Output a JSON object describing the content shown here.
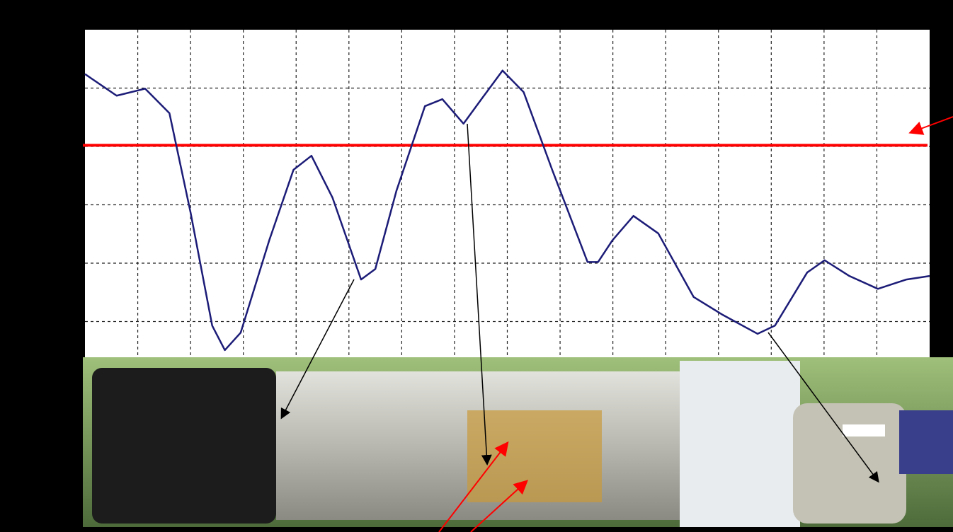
{
  "chart_data": {
    "type": "line",
    "x": [
      0,
      0.6,
      1.14,
      1.6,
      2.0,
      2.41,
      2.65,
      2.95,
      3.49,
      3.95,
      4.29,
      4.69,
      5.23,
      5.5,
      5.9,
      6.44,
      6.77,
      7.17,
      7.51,
      7.91,
      8.31,
      8.85,
      9.52,
      9.72,
      9.99,
      10.39,
      10.86,
      11.53,
      12.07,
      12.74,
      13.07,
      13.68,
      14.01,
      14.48,
      15.02,
      15.56,
      16
    ],
    "series": [
      {
        "color": "#1c1c78",
        "values": [
          5.24,
          4.87,
          4.99,
          4.57,
          2.87,
          0.93,
          0.51,
          0.81,
          2.39,
          3.6,
          3.84,
          3.12,
          1.72,
          1.9,
          3.24,
          4.69,
          4.81,
          4.39,
          4.81,
          5.3,
          4.93,
          3.6,
          2.02,
          2.02,
          2.39,
          2.81,
          2.51,
          1.42,
          1.12,
          0.79,
          0.93,
          1.84,
          2.05,
          1.78,
          1.56,
          1.72,
          1.78
        ]
      }
    ],
    "threshold": {
      "value": 4.02,
      "color": "#ff0000"
    },
    "xlim": [
      0,
      16
    ],
    "ylim": [
      0,
      6
    ],
    "xticks": [
      1,
      2,
      3,
      4,
      5,
      6,
      7,
      8,
      9,
      10,
      11,
      12,
      13,
      14,
      15
    ],
    "yticks": [
      1,
      2,
      3,
      4,
      5
    ],
    "grid": true
  }
}
